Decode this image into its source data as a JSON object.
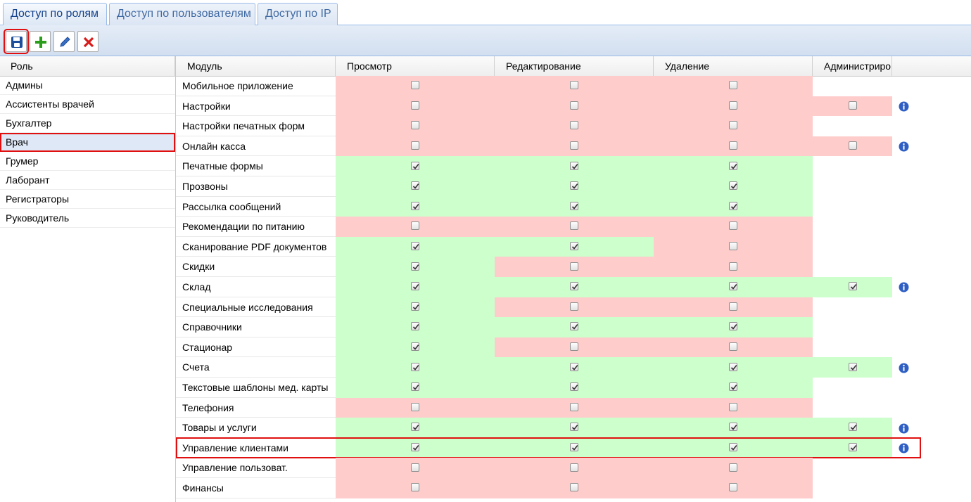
{
  "tabs": {
    "items": [
      "Доступ по ролям",
      "Доступ по пользователям",
      "Доступ по IP"
    ],
    "active": 0
  },
  "roles": {
    "header": "Роль",
    "items": [
      "Админы",
      "Ассистенты врачей",
      "Бухгалтер",
      "Врач",
      "Грумер",
      "Лаборант",
      "Регистраторы",
      "Руководитель"
    ],
    "selected": 3
  },
  "permissions": {
    "columns": [
      "Модуль",
      "Просмотр",
      "Редактирование",
      "Удаление",
      "Администриро"
    ],
    "highlighted_row": 18,
    "rows": [
      {
        "module": "Мобильное приложение",
        "view": false,
        "edit": false,
        "delete": false,
        "admin": null
      },
      {
        "module": "Настройки",
        "view": false,
        "edit": false,
        "delete": false,
        "admin": false
      },
      {
        "module": "Настройки печатных форм",
        "view": false,
        "edit": false,
        "delete": false,
        "admin": null
      },
      {
        "module": "Онлайн касса",
        "view": false,
        "edit": false,
        "delete": false,
        "admin": false
      },
      {
        "module": "Печатные формы",
        "view": true,
        "edit": true,
        "delete": true,
        "admin": null
      },
      {
        "module": "Прозвоны",
        "view": true,
        "edit": true,
        "delete": true,
        "admin": null
      },
      {
        "module": "Рассылка сообщений",
        "view": true,
        "edit": true,
        "delete": true,
        "admin": null
      },
      {
        "module": "Рекомендации по питанию",
        "view": false,
        "edit": false,
        "delete": false,
        "admin": null
      },
      {
        "module": "Сканирование PDF документов",
        "view": true,
        "edit": true,
        "delete": false,
        "admin": null
      },
      {
        "module": "Скидки",
        "view": true,
        "edit": false,
        "delete": false,
        "admin": null
      },
      {
        "module": "Склад",
        "view": true,
        "edit": true,
        "delete": true,
        "admin": true
      },
      {
        "module": "Специальные исследования",
        "view": true,
        "edit": false,
        "delete": false,
        "admin": null
      },
      {
        "module": "Справочники",
        "view": true,
        "edit": true,
        "delete": true,
        "admin": null
      },
      {
        "module": "Стационар",
        "view": true,
        "edit": false,
        "delete": false,
        "admin": null
      },
      {
        "module": "Счета",
        "view": true,
        "edit": true,
        "delete": true,
        "admin": true
      },
      {
        "module": "Текстовые шаблоны мед. карты",
        "view": true,
        "edit": true,
        "delete": true,
        "admin": null
      },
      {
        "module": "Телефония",
        "view": false,
        "edit": false,
        "delete": false,
        "admin": null
      },
      {
        "module": "Товары и услуги",
        "view": true,
        "edit": true,
        "delete": true,
        "admin": true
      },
      {
        "module": "Управление клиентами",
        "view": true,
        "edit": true,
        "delete": true,
        "admin": true
      },
      {
        "module": "Управление пользоват.",
        "view": false,
        "edit": false,
        "delete": false,
        "admin": null
      },
      {
        "module": "Финансы",
        "view": false,
        "edit": false,
        "delete": false,
        "admin": null
      }
    ]
  }
}
